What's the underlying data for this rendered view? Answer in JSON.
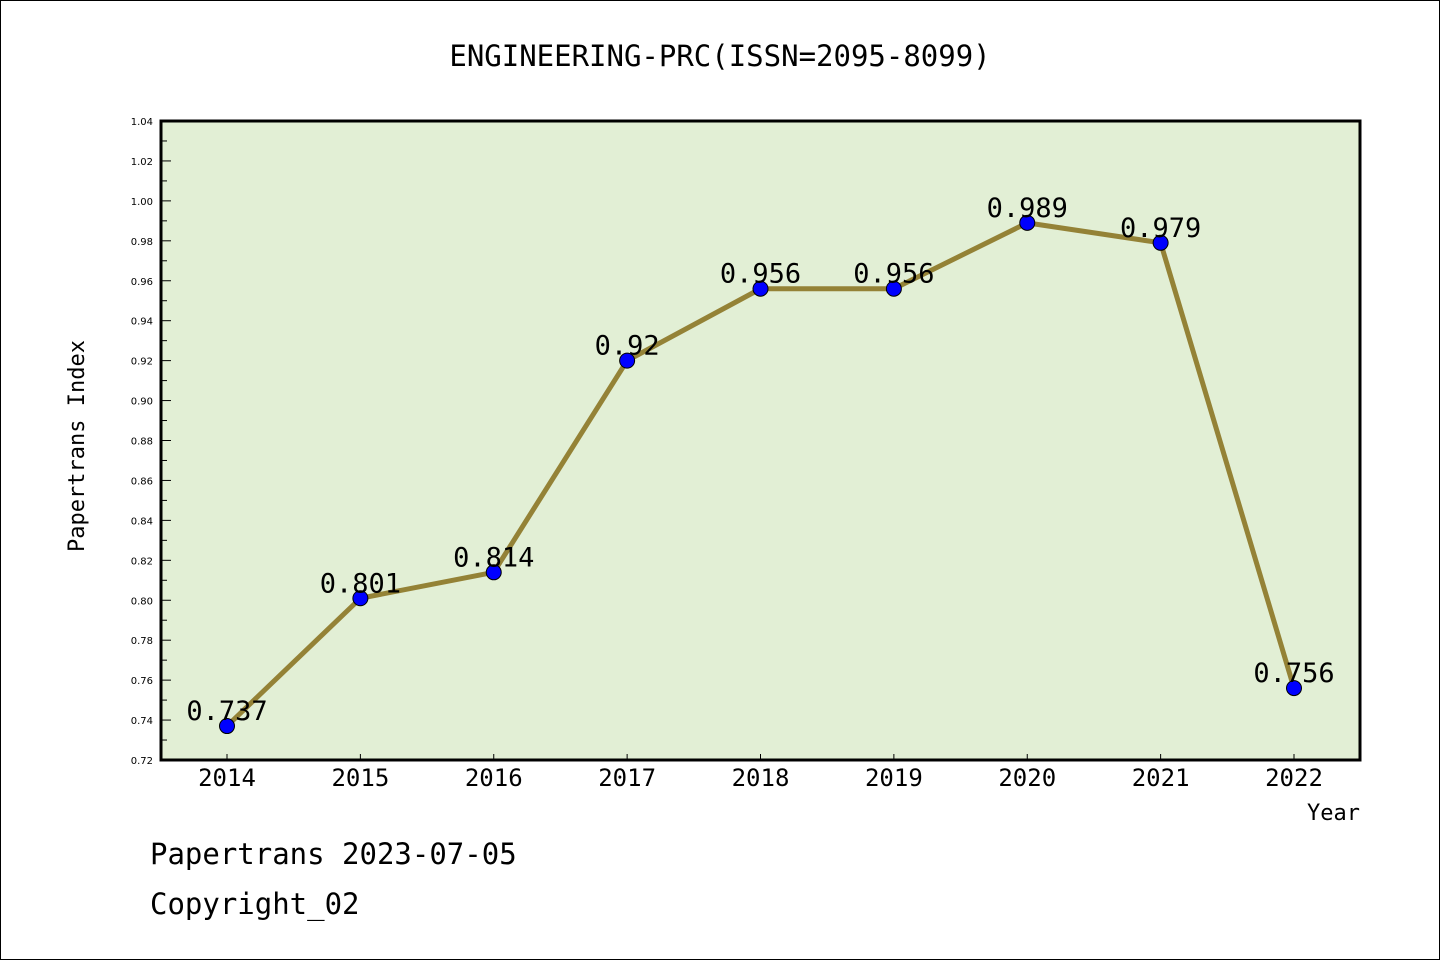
{
  "chart_data": {
    "type": "line",
    "title": "ENGINEERING-PRC(ISSN=2095-8099)",
    "xlabel": "Year",
    "ylabel": "Papertrans Index",
    "categories": [
      "2014",
      "2015",
      "2016",
      "2017",
      "2018",
      "2019",
      "2020",
      "2021",
      "2022"
    ],
    "series": [
      {
        "name": "Papertrans Index",
        "values": [
          0.737,
          0.801,
          0.814,
          0.92,
          0.956,
          0.956,
          0.989,
          0.979,
          0.756
        ],
        "data_labels": [
          "0.737",
          "0.801",
          "0.814",
          "0.92",
          "0.956",
          "0.956",
          "0.989",
          "0.979",
          "0.756"
        ]
      }
    ],
    "ylim": [
      0.72,
      1.04
    ],
    "yticks": [
      "0.72",
      "0.74",
      "0.76",
      "0.78",
      "0.80",
      "0.82",
      "0.84",
      "0.86",
      "0.88",
      "0.90",
      "0.92",
      "0.94",
      "0.96",
      "0.98",
      "1.00",
      "1.02",
      "1.04"
    ],
    "ytick_step": 0.02,
    "grid": false,
    "legend": "none",
    "colors": {
      "line": "#948236",
      "marker_fill": "#0000FF",
      "marker_edge": "#000000",
      "plot_background": "#E2EFD5",
      "axis": "#000000"
    }
  },
  "footer": {
    "line1": "Papertrans 2023-07-05",
    "line2": "Copyright_02"
  }
}
